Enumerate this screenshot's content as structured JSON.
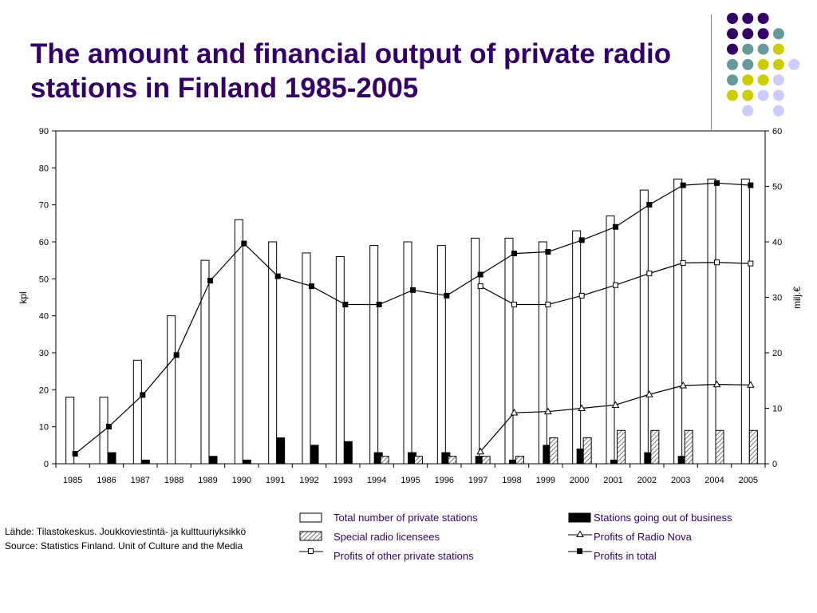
{
  "title": "The amount and financial output of private radio stations in Finland 1985-2005",
  "colors": {
    "title": "#330066",
    "legend_text": "#330066",
    "dot_purple": "#330066",
    "dot_teal": "#669999",
    "dot_yellow": "#cccc00",
    "dot_lavender": "#ccccff"
  },
  "decor_dots": [
    [
      "purple",
      "purple",
      "purple",
      ""
    ],
    [
      "purple",
      "purple",
      "purple",
      "teal"
    ],
    [
      "purple",
      "teal",
      "teal",
      "yellow"
    ],
    [
      "teal",
      "teal",
      "yellow",
      "yellow",
      "lavender"
    ],
    [
      "teal",
      "yellow",
      "yellow",
      "lavender"
    ],
    [
      "yellow",
      "yellow",
      "lavender",
      "lavender"
    ],
    [
      "",
      "lavender",
      "",
      "lavender"
    ]
  ],
  "source": {
    "line1": "Lähde: Tilastokeskus. Joukkoviestintä- ja kulttuuriyksikkö",
    "line2": "Source: Statistics Finland. Unit of Culture and the Media"
  },
  "legend": [
    {
      "label": "Total number of private stations",
      "symbol": "bar-white"
    },
    {
      "label": "Special radio licensees",
      "symbol": "bar-hatched"
    },
    {
      "label": "Profits of other private stations",
      "symbol": "line-square-open"
    },
    {
      "label": "Stations going out of business",
      "symbol": "bar-black"
    },
    {
      "label": "Profits of Radio Nova",
      "symbol": "line-triangle-open"
    },
    {
      "label": "Profits in total",
      "symbol": "line-square-filled"
    }
  ],
  "chart_data": {
    "type": "bar",
    "categories": [
      "1985",
      "1986",
      "1987",
      "1988",
      "1989",
      "1990",
      "1991",
      "1992",
      "1993",
      "1994",
      "1995",
      "1996",
      "1997",
      "1998",
      "1999",
      "2000",
      "2001",
      "2002",
      "2003",
      "2004",
      "2005"
    ],
    "ylabel": "kpl",
    "y2label": "milj.€",
    "ylim": [
      0,
      90
    ],
    "y2lim": [
      0,
      60
    ],
    "yticks": [
      "0",
      "10",
      "20",
      "30",
      "40",
      "50",
      "60",
      "70",
      "80",
      "90"
    ],
    "y2ticks": [
      "0",
      "10",
      "20",
      "30",
      "40",
      "50",
      "60"
    ],
    "grid": false,
    "legend_position": "bottom",
    "bar_series": [
      {
        "name": "Total number of private stations",
        "axis": "left",
        "style": "white",
        "values": [
          18,
          18,
          28,
          40,
          55,
          66,
          60,
          57,
          56,
          59,
          60,
          59,
          61,
          61,
          60,
          63,
          67,
          74,
          77,
          77,
          77
        ]
      },
      {
        "name": "Stations going out of business",
        "axis": "left",
        "style": "black",
        "values": [
          0,
          3,
          1,
          0,
          2,
          1,
          7,
          5,
          6,
          3,
          3,
          3,
          2,
          1,
          5,
          4,
          1,
          3,
          2,
          0,
          0
        ]
      },
      {
        "name": "Special radio licensees",
        "axis": "left",
        "style": "hatched",
        "values": [
          0,
          0,
          0,
          0,
          0,
          0,
          0,
          0,
          0,
          2,
          2,
          2,
          2,
          2,
          7,
          7,
          9,
          9,
          9,
          9,
          9
        ]
      }
    ],
    "line_series": [
      {
        "name": "Profits in total",
        "axis": "right",
        "marker": "square-filled",
        "values": [
          1.8,
          6.7,
          12.4,
          19.6,
          33.0,
          39.7,
          33.8,
          32.0,
          28.7,
          28.7,
          31.3,
          30.3,
          34.1,
          37.9,
          38.2,
          40.3,
          42.7,
          46.7,
          50.2,
          50.6,
          50.2
        ]
      },
      {
        "name": "Profits of other private stations",
        "axis": "right",
        "marker": "square-open",
        "values": [
          null,
          null,
          null,
          null,
          null,
          null,
          null,
          null,
          null,
          null,
          null,
          null,
          32.0,
          28.7,
          28.7,
          30.3,
          32.2,
          34.3,
          36.2,
          36.3,
          36.1
        ]
      },
      {
        "name": "Profits of Radio Nova",
        "axis": "right",
        "marker": "triangle-open",
        "values": [
          null,
          null,
          null,
          null,
          null,
          null,
          null,
          null,
          null,
          null,
          null,
          null,
          2.2,
          9.2,
          9.4,
          10.0,
          10.6,
          12.5,
          14.1,
          14.3,
          14.2
        ]
      }
    ]
  }
}
